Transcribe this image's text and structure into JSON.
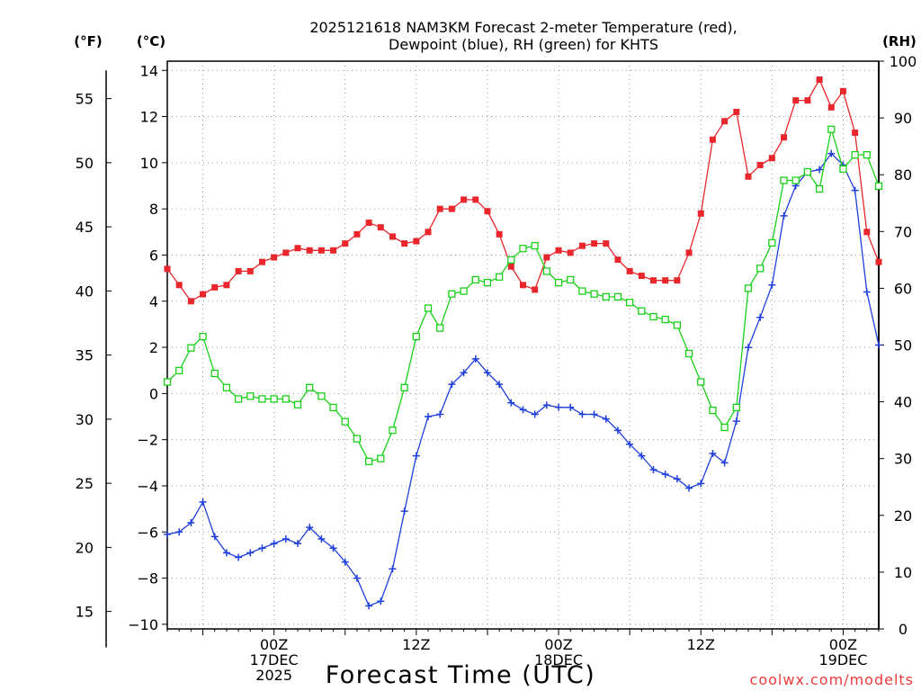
{
  "chart_data": {
    "type": "line",
    "title_line1": "2025121618 NAM3KM Forecast 2-meter Temperature (red),",
    "title_line2": "Dewpoint (blue), RH (green) for KHTS",
    "xlabel": "Forecast Time (UTC)",
    "watermark": "coolwx.com/modelts",
    "units": {
      "fahrenheit": "(°F)",
      "celsius": "(°C)",
      "rh": "(RH)"
    },
    "x_range": [
      -3.0,
      57.0
    ],
    "x_ticks": [
      {
        "hour": 6,
        "lines": [
          "00Z",
          "17DEC",
          "2025"
        ]
      },
      {
        "hour": 18,
        "lines": [
          "12Z"
        ]
      },
      {
        "hour": 30,
        "lines": [
          "00Z",
          "18DEC"
        ]
      },
      {
        "hour": 42,
        "lines": [
          "12Z"
        ]
      },
      {
        "hour": 54,
        "lines": [
          "00Z",
          "19DEC"
        ]
      }
    ],
    "celsius_axis": {
      "range": [
        -10.2,
        14.4
      ],
      "ticks": [
        -10,
        -8,
        -6,
        -4,
        -2,
        0,
        2,
        4,
        6,
        8,
        10,
        12,
        14
      ]
    },
    "fahrenheit_axis": {
      "ticks": [
        15,
        20,
        25,
        30,
        35,
        40,
        45,
        50,
        55
      ]
    },
    "rh_axis": {
      "range": [
        0,
        100
      ],
      "ticks": [
        0,
        10,
        20,
        30,
        40,
        50,
        60,
        70,
        80,
        90,
        100
      ]
    },
    "x_hours_start": -3,
    "x_hours_step": 1,
    "series": [
      {
        "name": "Temperature",
        "axis": "celsius",
        "color": "#e8262b",
        "marker": "square-filled",
        "values": [
          5.4,
          4.7,
          4.0,
          4.3,
          4.6,
          4.7,
          5.3,
          5.3,
          5.7,
          5.9,
          6.1,
          6.3,
          6.2,
          6.2,
          6.2,
          6.5,
          6.9,
          7.4,
          7.2,
          6.8,
          6.5,
          6.6,
          7.0,
          8.0,
          8.0,
          8.4,
          8.4,
          7.9,
          6.9,
          5.5,
          4.7,
          4.5,
          5.9,
          6.2,
          6.1,
          6.4,
          6.5,
          6.5,
          5.8,
          5.3,
          5.1,
          4.9,
          4.9,
          4.9,
          6.1,
          7.8,
          11.0,
          11.8,
          12.2,
          9.4,
          9.9,
          10.2,
          11.1,
          12.7,
          12.7,
          13.6,
          12.4,
          13.1,
          11.3,
          7.0,
          5.7
        ]
      },
      {
        "name": "Dewpoint",
        "axis": "celsius",
        "color": "#1f3fdc",
        "marker": "plus",
        "values": [
          -6.1,
          -6.0,
          -5.6,
          -4.7,
          -6.2,
          -6.9,
          -7.1,
          -6.9,
          -6.7,
          -6.5,
          -6.3,
          -6.5,
          -5.8,
          -6.3,
          -6.7,
          -7.3,
          -8.0,
          -9.2,
          -9.0,
          -7.6,
          -5.1,
          -2.7,
          -1.0,
          -0.9,
          0.4,
          0.9,
          1.5,
          0.9,
          0.4,
          -0.4,
          -0.7,
          -0.9,
          -0.5,
          -0.6,
          -0.6,
          -0.9,
          -0.9,
          -1.1,
          -1.6,
          -2.2,
          -2.7,
          -3.3,
          -3.5,
          -3.7,
          -4.1,
          -3.9,
          -2.6,
          -3.0,
          -1.2,
          2.0,
          3.3,
          4.7,
          7.7,
          9.0,
          9.6,
          9.7,
          10.4,
          9.9,
          8.8,
          4.4,
          2.1
        ]
      },
      {
        "name": "RH",
        "axis": "rh",
        "color": "#19d019",
        "marker": "square-open",
        "values": [
          43.5,
          45.5,
          49.5,
          51.5,
          45,
          42.5,
          40.5,
          41,
          40.5,
          40.5,
          40.5,
          39.5,
          42.5,
          41,
          39,
          36.5,
          33.5,
          29.5,
          30,
          35,
          42.5,
          51.5,
          56.5,
          53,
          59,
          59.5,
          61.5,
          61,
          62,
          65,
          67,
          67.5,
          63,
          61,
          61.5,
          59.5,
          59,
          58.5,
          58.5,
          57.5,
          56,
          55,
          54.5,
          53.5,
          48.5,
          43.5,
          38.5,
          35.5,
          39,
          60,
          63.5,
          68,
          79,
          79,
          80.5,
          77.5,
          88,
          81,
          83.5,
          83.5,
          78
        ]
      }
    ]
  }
}
